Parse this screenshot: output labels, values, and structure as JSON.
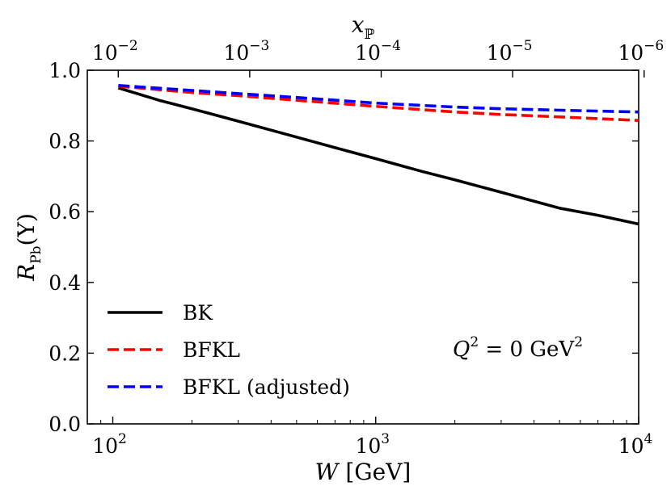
{
  "chart_data": {
    "type": "line",
    "x_scale": "log",
    "xlim": [
      80,
      10000
    ],
    "ylim": [
      0.0,
      1.0
    ],
    "xlabel": "W [GeV]",
    "xlabel_parts": {
      "var": "W",
      "unit": "[GeV]"
    },
    "ylabel": "R_Pb(Υ)",
    "ylabel_parts": {
      "var": "R",
      "sub": "Pb",
      "arg": "(Υ)"
    },
    "top_axis_label": "x_ℙ",
    "top_axis_label_parts": {
      "var": "x",
      "sub": "ℙ"
    },
    "x_ticks": [
      {
        "value": 100,
        "base": "10",
        "exp": "2"
      },
      {
        "value": 1000,
        "base": "10",
        "exp": "3"
      },
      {
        "value": 10000,
        "base": "10",
        "exp": "4"
      }
    ],
    "top_ticks": [
      {
        "w": 104.9,
        "base": "10",
        "exp": "−2"
      },
      {
        "w": 331.7,
        "base": "10",
        "exp": "−3"
      },
      {
        "w": 1049,
        "base": "10",
        "exp": "−4"
      },
      {
        "w": 3317,
        "base": "10",
        "exp": "−5"
      },
      {
        "w": 10490,
        "base": "10",
        "exp": "−6"
      }
    ],
    "y_ticks": [
      "0.0",
      "0.2",
      "0.4",
      "0.6",
      "0.8",
      "1.0"
    ],
    "series": [
      {
        "name": "BK",
        "color": "#000000",
        "style": "solid",
        "x": [
          105,
          150,
          200,
          300,
          500,
          700,
          1000,
          1500,
          2000,
          3000,
          5000,
          7000,
          10000
        ],
        "y": [
          0.95,
          0.915,
          0.891,
          0.856,
          0.811,
          0.781,
          0.75,
          0.714,
          0.69,
          0.655,
          0.61,
          0.59,
          0.565
        ]
      },
      {
        "name": "BFKL",
        "color": "#ff0000",
        "style": "dashed",
        "x": [
          105,
          200,
          300,
          500,
          1000,
          2000,
          3000,
          5000,
          10000
        ],
        "y": [
          0.955,
          0.937,
          0.928,
          0.915,
          0.898,
          0.882,
          0.875,
          0.868,
          0.858
        ]
      },
      {
        "name": "BFKL (adjusted)",
        "color": "#0000ff",
        "style": "dashed",
        "x": [
          105,
          200,
          300,
          500,
          1000,
          2000,
          3000,
          5000,
          10000
        ],
        "y": [
          0.957,
          0.943,
          0.934,
          0.923,
          0.907,
          0.896,
          0.891,
          0.887,
          0.882
        ]
      }
    ],
    "legend_position": "lower-left",
    "annotation": {
      "var": "Q",
      "exp": "2",
      "rhs": "= 0 GeV",
      "rhs_exp": "2"
    }
  }
}
